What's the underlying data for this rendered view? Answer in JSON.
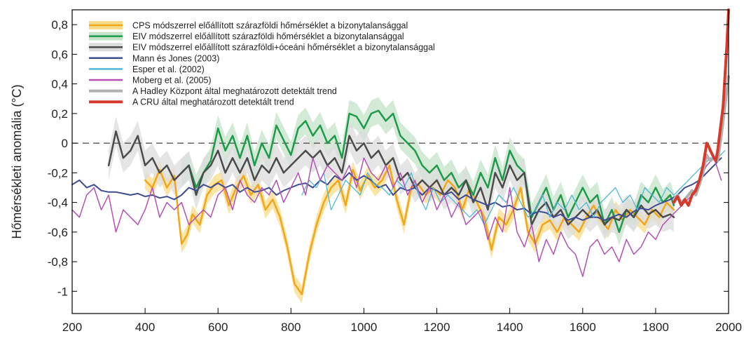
{
  "chart_data": {
    "type": "line",
    "title": "",
    "xlabel": "",
    "ylabel": "Hőmérsékleti anomália (°C)",
    "xlim": [
      200,
      2000
    ],
    "ylim": [
      -1.15,
      0.9
    ],
    "xticks": [
      200,
      400,
      600,
      800,
      1000,
      1200,
      1400,
      1600,
      1800,
      2000
    ],
    "xtick_labels": [
      "200",
      "400",
      "600",
      "800",
      "1000",
      "1200",
      "1400",
      "1600",
      "1800",
      "2000"
    ],
    "yticks": [
      0.8,
      0.6,
      0.4,
      0.2,
      0,
      -0.2,
      -0.4,
      -0.6,
      -0.8,
      -1
    ],
    "ytick_labels": [
      "0,8",
      "0,6",
      "0,4",
      "0,2",
      "0",
      "-0,2",
      "-0,4",
      "-0,6",
      "-0,8",
      "-1"
    ],
    "grid": false,
    "zero_line": "dashed",
    "legend_position": "top-left",
    "series": [
      {
        "name": "CPS módszerrel előállított szárazföldi hőmérséklet a bizonytalansággal",
        "color": "#f2a619",
        "band_color": "#f8dc8a",
        "band_halfwidth": 0.06,
        "width": 2.5,
        "x": [
          400,
          420,
          440,
          460,
          480,
          500,
          515,
          530,
          550,
          570,
          590,
          610,
          630,
          650,
          670,
          690,
          710,
          730,
          750,
          770,
          790,
          810,
          830,
          850,
          870,
          890,
          910,
          930,
          950,
          970,
          990,
          1010,
          1030,
          1050,
          1070,
          1090,
          1110,
          1130,
          1150,
          1170,
          1190,
          1210,
          1230,
          1250,
          1270,
          1290,
          1310,
          1330,
          1350,
          1370,
          1390,
          1410,
          1430,
          1450,
          1470,
          1490,
          1510,
          1530,
          1550,
          1570,
          1590,
          1610,
          1630,
          1650,
          1670,
          1690,
          1710,
          1730,
          1750,
          1770,
          1790,
          1810,
          1830,
          1850
        ],
        "y": [
          -0.25,
          -0.3,
          -0.18,
          -0.3,
          -0.22,
          -0.68,
          -0.62,
          -0.48,
          -0.55,
          -0.35,
          -0.28,
          -0.25,
          -0.42,
          -0.3,
          -0.22,
          -0.35,
          -0.28,
          -0.45,
          -0.38,
          -0.5,
          -0.7,
          -0.95,
          -1.02,
          -0.75,
          -0.55,
          -0.4,
          -0.3,
          -0.25,
          -0.42,
          -0.18,
          -0.32,
          -0.22,
          -0.3,
          -0.25,
          -0.15,
          -0.38,
          -0.55,
          -0.3,
          -0.28,
          -0.35,
          -0.3,
          -0.35,
          -0.25,
          -0.3,
          -0.45,
          -0.3,
          -0.4,
          -0.5,
          -0.72,
          -0.5,
          -0.55,
          -0.45,
          -0.3,
          -0.6,
          -0.68,
          -0.55,
          -0.52,
          -0.6,
          -0.5,
          -0.55,
          -0.6,
          -0.5,
          -0.42,
          -0.52,
          -0.58,
          -0.45,
          -0.52,
          -0.45,
          -0.5,
          -0.55,
          -0.45,
          -0.5,
          -0.4,
          -0.45
        ]
      },
      {
        "name": "EIV módszerrel előállított szárazföldi hőmérséklet a bizonytalansággal",
        "color": "#1e9a4a",
        "band_color": "#c4e3c9",
        "band_halfwidth": 0.09,
        "width": 2.5,
        "x": [
          500,
          520,
          540,
          560,
          580,
          600,
          620,
          640,
          660,
          680,
          700,
          720,
          740,
          760,
          780,
          800,
          820,
          840,
          860,
          880,
          900,
          920,
          940,
          960,
          980,
          1000,
          1020,
          1040,
          1060,
          1080,
          1100,
          1120,
          1140,
          1160,
          1180,
          1200,
          1220,
          1240,
          1260,
          1280,
          1300,
          1320,
          1340,
          1360,
          1380,
          1400,
          1420,
          1440,
          1460,
          1480,
          1500,
          1520,
          1540,
          1560,
          1580,
          1600,
          1620,
          1640,
          1660,
          1680,
          1700,
          1720,
          1740,
          1760,
          1780,
          1800,
          1820,
          1840,
          1850
        ],
        "y": [
          -0.2,
          -0.15,
          -0.3,
          -0.2,
          -0.12,
          0.1,
          -0.05,
          0.05,
          -0.1,
          0.05,
          -0.15,
          0.0,
          -0.1,
          0.12,
          0.02,
          -0.08,
          0.1,
          0.15,
          0.05,
          0.12,
          0.0,
          0.05,
          -0.1,
          0.2,
          0.18,
          0.1,
          0.2,
          0.22,
          0.15,
          0.2,
          0.05,
          0.0,
          -0.05,
          -0.15,
          -0.2,
          -0.15,
          -0.25,
          -0.2,
          -0.3,
          -0.25,
          -0.35,
          -0.2,
          -0.3,
          -0.1,
          -0.25,
          -0.05,
          -0.15,
          -0.2,
          -0.5,
          -0.4,
          -0.3,
          -0.45,
          -0.35,
          -0.5,
          -0.4,
          -0.3,
          -0.4,
          -0.35,
          -0.55,
          -0.45,
          -0.6,
          -0.45,
          -0.5,
          -0.35,
          -0.4,
          -0.3,
          -0.4,
          -0.35,
          -0.42
        ]
      },
      {
        "name": "EIV módszerrel előállított szárazföldi+óceáni hőmérséklet a bizonytalansággal",
        "color": "#4b4b4b",
        "band_color": "#dcdcdc",
        "band_halfwidth": 0.1,
        "width": 2.5,
        "x": [
          300,
          320,
          340,
          360,
          380,
          400,
          420,
          440,
          460,
          480,
          500,
          520,
          540,
          560,
          580,
          600,
          620,
          640,
          660,
          680,
          700,
          720,
          740,
          760,
          780,
          800,
          820,
          840,
          860,
          880,
          900,
          920,
          940,
          960,
          980,
          1000,
          1020,
          1040,
          1060,
          1080,
          1100,
          1120,
          1140,
          1160,
          1180,
          1200,
          1220,
          1240,
          1260,
          1280,
          1300,
          1320,
          1340,
          1360,
          1380,
          1400,
          1420,
          1440,
          1460,
          1480,
          1500,
          1520,
          1540,
          1560,
          1580,
          1600,
          1620,
          1640,
          1660,
          1680,
          1700,
          1720,
          1740,
          1760,
          1780,
          1800,
          1820,
          1840,
          1850
        ],
        "y": [
          -0.15,
          0.08,
          -0.1,
          -0.05,
          0.05,
          -0.15,
          -0.1,
          -0.2,
          -0.15,
          -0.25,
          -0.2,
          -0.15,
          -0.35,
          -0.2,
          -0.15,
          -0.05,
          -0.2,
          -0.1,
          -0.2,
          -0.1,
          -0.25,
          -0.15,
          -0.2,
          -0.1,
          -0.2,
          -0.15,
          -0.1,
          -0.05,
          -0.1,
          -0.05,
          -0.15,
          -0.1,
          -0.2,
          0.05,
          -0.05,
          0.0,
          -0.1,
          -0.05,
          -0.15,
          -0.1,
          -0.25,
          -0.2,
          -0.3,
          -0.25,
          -0.3,
          -0.25,
          -0.35,
          -0.3,
          -0.35,
          -0.25,
          -0.4,
          -0.3,
          -0.45,
          -0.2,
          -0.3,
          -0.15,
          -0.25,
          -0.2,
          -0.55,
          -0.45,
          -0.4,
          -0.5,
          -0.45,
          -0.55,
          -0.5,
          -0.45,
          -0.5,
          -0.45,
          -0.55,
          -0.5,
          -0.52,
          -0.45,
          -0.5,
          -0.42,
          -0.48,
          -0.45,
          -0.5,
          -0.48,
          -0.5
        ]
      },
      {
        "name": "Mann és Jones (2003)",
        "color": "#3f4c94",
        "width": 2,
        "x": [
          200,
          220,
          240,
          260,
          280,
          300,
          320,
          340,
          360,
          380,
          400,
          420,
          440,
          460,
          480,
          500,
          520,
          540,
          560,
          580,
          600,
          620,
          640,
          660,
          680,
          700,
          720,
          740,
          760,
          780,
          800,
          820,
          840,
          860,
          880,
          900,
          920,
          940,
          960,
          980,
          1000,
          1020,
          1040,
          1060,
          1080,
          1100,
          1120,
          1140,
          1160,
          1180,
          1200,
          1220,
          1240,
          1260,
          1280,
          1300,
          1320,
          1340,
          1360,
          1380,
          1400,
          1420,
          1440,
          1460,
          1480,
          1500,
          1520,
          1540,
          1560,
          1580,
          1600,
          1620,
          1640,
          1660,
          1680,
          1700,
          1720,
          1740,
          1760,
          1780,
          1800,
          1820,
          1840,
          1860,
          1880,
          1900,
          1920,
          1940,
          1960,
          1980
        ],
        "y": [
          -0.28,
          -0.25,
          -0.3,
          -0.28,
          -0.32,
          -0.33,
          -0.33,
          -0.34,
          -0.35,
          -0.34,
          -0.36,
          -0.35,
          -0.37,
          -0.36,
          -0.38,
          -0.35,
          -0.3,
          -0.32,
          -0.28,
          -0.3,
          -0.27,
          -0.3,
          -0.28,
          -0.33,
          -0.3,
          -0.33,
          -0.32,
          -0.3,
          -0.35,
          -0.32,
          -0.3,
          -0.28,
          -0.27,
          -0.3,
          -0.25,
          -0.28,
          -0.22,
          -0.25,
          -0.2,
          -0.25,
          -0.22,
          -0.25,
          -0.3,
          -0.28,
          -0.35,
          -0.3,
          -0.32,
          -0.3,
          -0.35,
          -0.3,
          -0.32,
          -0.35,
          -0.33,
          -0.38,
          -0.35,
          -0.38,
          -0.4,
          -0.42,
          -0.4,
          -0.43,
          -0.42,
          -0.45,
          -0.44,
          -0.48,
          -0.46,
          -0.47,
          -0.5,
          -0.48,
          -0.52,
          -0.5,
          -0.52,
          -0.5,
          -0.5,
          -0.52,
          -0.5,
          -0.48,
          -0.5,
          -0.46,
          -0.44,
          -0.45,
          -0.42,
          -0.4,
          -0.38,
          -0.35,
          -0.3,
          -0.28,
          -0.25,
          -0.2,
          -0.15,
          -0.1
        ]
      },
      {
        "name": "Esper et al. (2002)",
        "color": "#4fb9d3",
        "width": 1.3,
        "x": [
          830,
          850,
          870,
          890,
          910,
          930,
          950,
          970,
          990,
          1010,
          1030,
          1050,
          1070,
          1090,
          1110,
          1130,
          1150,
          1170,
          1190,
          1210,
          1230,
          1250,
          1270,
          1290,
          1310,
          1330,
          1350,
          1370,
          1390,
          1410,
          1430,
          1450,
          1470,
          1490,
          1510,
          1530,
          1550,
          1570,
          1590,
          1610,
          1630,
          1650,
          1670,
          1690,
          1710,
          1730,
          1750,
          1770,
          1790,
          1810,
          1830,
          1850,
          1870,
          1890,
          1910,
          1930,
          1950,
          1970,
          1990
        ],
        "y": [
          -0.35,
          -0.25,
          -0.3,
          -0.2,
          -0.45,
          -0.35,
          -0.25,
          -0.3,
          -0.35,
          -0.2,
          -0.28,
          -0.3,
          -0.35,
          -0.25,
          -0.3,
          -0.2,
          -0.35,
          -0.45,
          -0.3,
          -0.4,
          -0.35,
          -0.4,
          -0.45,
          -0.5,
          -0.45,
          -0.55,
          -0.45,
          -0.35,
          -0.4,
          -0.3,
          -0.4,
          -0.5,
          -0.45,
          -0.35,
          -0.5,
          -0.4,
          -0.45,
          -0.35,
          -0.45,
          -0.4,
          -0.5,
          -0.4,
          -0.35,
          -0.3,
          -0.4,
          -0.35,
          -0.45,
          -0.3,
          -0.35,
          -0.4,
          -0.3,
          -0.35,
          -0.3,
          -0.25,
          -0.2,
          -0.15,
          -0.1,
          -0.1,
          -0.05
        ]
      },
      {
        "name": "Moberg et al. (2005)",
        "color": "#b450b4",
        "width": 1.5,
        "x": [
          200,
          220,
          240,
          260,
          280,
          300,
          320,
          340,
          360,
          380,
          400,
          420,
          440,
          460,
          480,
          500,
          520,
          540,
          560,
          580,
          600,
          620,
          640,
          660,
          680,
          700,
          720,
          740,
          760,
          780,
          800,
          820,
          840,
          860,
          880,
          900,
          920,
          940,
          960,
          980,
          1000,
          1020,
          1040,
          1060,
          1080,
          1100,
          1120,
          1140,
          1160,
          1180,
          1200,
          1220,
          1240,
          1260,
          1280,
          1300,
          1320,
          1340,
          1360,
          1380,
          1400,
          1420,
          1440,
          1460,
          1480,
          1500,
          1520,
          1540,
          1560,
          1580,
          1600,
          1620,
          1640,
          1660,
          1680,
          1700,
          1720,
          1740,
          1760,
          1780,
          1800,
          1820,
          1840,
          1860,
          1880,
          1900,
          1920,
          1940,
          1960,
          1980
        ],
        "y": [
          -0.45,
          -0.5,
          -0.35,
          -0.3,
          -0.45,
          -0.35,
          -0.6,
          -0.45,
          -0.5,
          -0.55,
          -0.45,
          -0.3,
          -0.5,
          -0.4,
          -0.45,
          -0.4,
          -0.55,
          -0.5,
          -0.45,
          -0.5,
          -0.35,
          -0.3,
          -0.45,
          -0.25,
          -0.35,
          -0.4,
          -0.3,
          -0.35,
          -0.25,
          -0.4,
          -0.3,
          -0.2,
          -0.35,
          -0.1,
          -0.25,
          -0.15,
          -0.2,
          -0.25,
          -0.15,
          -0.3,
          -0.1,
          -0.2,
          -0.25,
          -0.15,
          -0.3,
          -0.2,
          -0.35,
          -0.25,
          -0.4,
          -0.3,
          -0.45,
          -0.35,
          -0.5,
          -0.4,
          -0.55,
          -0.5,
          -0.45,
          -0.65,
          -0.5,
          -0.6,
          -0.3,
          -0.6,
          -0.7,
          -0.55,
          -0.8,
          -0.65,
          -0.75,
          -0.6,
          -0.7,
          -0.75,
          -0.9,
          -0.7,
          -0.65,
          -0.75,
          -0.7,
          -0.8,
          -0.65,
          -0.75,
          -0.7,
          -0.6,
          -0.65,
          -0.55,
          -0.5,
          -0.45,
          -0.4,
          -0.35,
          -0.25,
          -0.15,
          -0.1,
          -0.25
        ]
      },
      {
        "name": "A Hadley Központ által meghatározott detektált trend",
        "color": "#b0b0b0",
        "width": 4,
        "x": [
          1850,
          1860,
          1870,
          1880,
          1890,
          1900,
          1910,
          1920,
          1930,
          1940,
          1950,
          1960,
          1970,
          1980,
          1990,
          2000
        ],
        "y": [
          -0.38,
          -0.35,
          -0.4,
          -0.38,
          -0.35,
          -0.32,
          -0.35,
          -0.28,
          -0.2,
          -0.08,
          -0.12,
          -0.1,
          -0.12,
          0.05,
          0.25,
          0.45
        ]
      },
      {
        "name": "A CRU által meghatározott detektált trend",
        "color": "#d63a2a",
        "width": 4,
        "x": [
          1850,
          1860,
          1870,
          1880,
          1890,
          1900,
          1910,
          1920,
          1930,
          1940,
          1945,
          1950,
          1960,
          1965,
          1970,
          1980,
          1985,
          1990,
          1995,
          2000
        ],
        "y": [
          -0.4,
          -0.36,
          -0.42,
          -0.38,
          -0.42,
          -0.35,
          -0.32,
          -0.25,
          -0.15,
          0.0,
          -0.02,
          -0.05,
          -0.1,
          -0.12,
          -0.05,
          0.15,
          0.25,
          0.45,
          0.65,
          0.92
        ]
      }
    ]
  }
}
